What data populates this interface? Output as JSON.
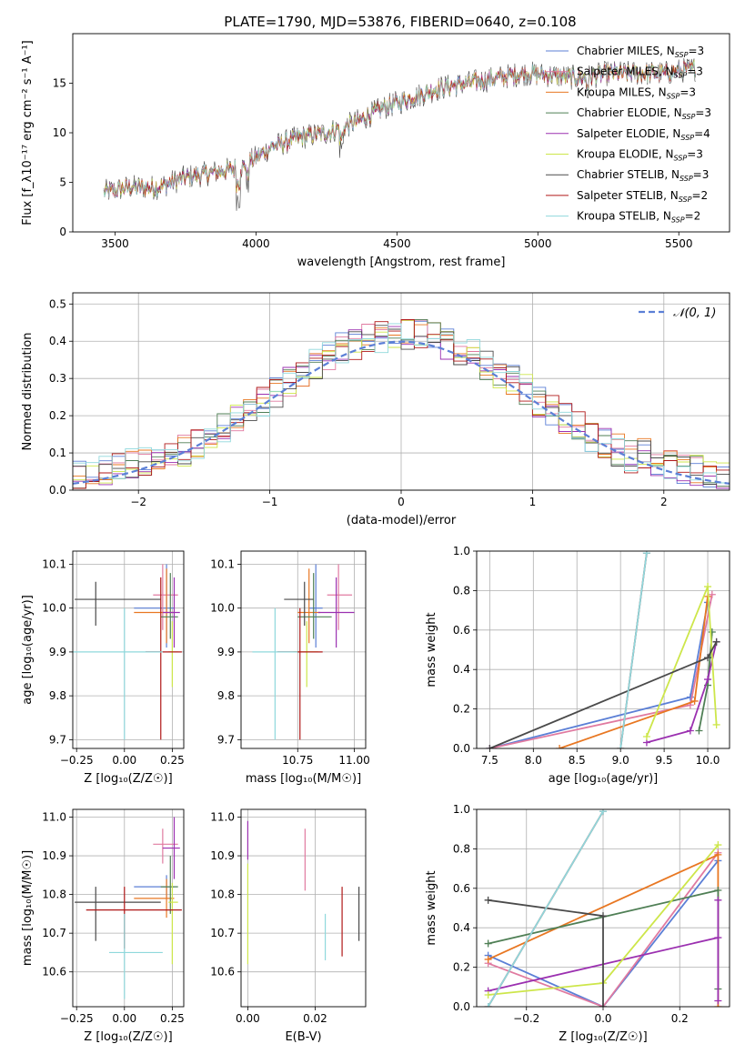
{
  "title": "PLATE=1790, MJD=53876, FIBERID=0640, z=0.108",
  "colors": {
    "chabrier_miles": "#5b7fd6",
    "salpeter_miles": "#e07aa0",
    "kroupa_miles": "#e87722",
    "chabrier_elodie": "#4f7f55",
    "salpeter_elodie": "#9b30b0",
    "kroupa_elodie": "#cde64a",
    "chabrier_stelib": "#4a4a4a",
    "salpeter_stelib": "#b01818",
    "kroupa_stelib": "#8fd8dc"
  },
  "chart_data": [
    {
      "id": "spectrum",
      "type": "line",
      "xlabel": "wavelength [Angstrom, rest frame]",
      "ylabel": "Flux [f_λ10⁻¹⁷ erg cm⁻² s⁻¹ A⁻¹]",
      "xlim": [
        3350,
        5680
      ],
      "ylim": [
        0,
        20
      ],
      "xticks": [
        3500,
        4000,
        4500,
        5000,
        5500
      ],
      "yticks": [
        0,
        5,
        10,
        15
      ],
      "grid": false,
      "legend_position": "top-right",
      "legend": [
        {
          "label": "Chabrier MILES, N_SSP=3",
          "text": "Chabrier MILES, N",
          "sub": "SSP",
          "tail": "=3",
          "color": "chabrier_miles"
        },
        {
          "label": "Salpeter MILES, N_SSP=3",
          "text": "Salpeter MILES, N",
          "sub": "SSP",
          "tail": "=3",
          "color": "salpeter_miles"
        },
        {
          "label": "Kroupa MILES, N_SSP=3",
          "text": "Kroupa MILES, N",
          "sub": "SSP",
          "tail": "=3",
          "color": "kroupa_miles"
        },
        {
          "label": "Chabrier ELODIE, N_SSP=3",
          "text": "Chabrier ELODIE, N",
          "sub": "SSP",
          "tail": "=3",
          "color": "chabrier_elodie"
        },
        {
          "label": "Salpeter ELODIE, N_SSP=4",
          "text": "Salpeter ELODIE, N",
          "sub": "SSP",
          "tail": "=4",
          "color": "salpeter_elodie"
        },
        {
          "label": "Kroupa ELODIE, N_SSP=3",
          "text": "Kroupa ELODIE, N",
          "sub": "SSP",
          "tail": "=3",
          "color": "kroupa_elodie"
        },
        {
          "label": "Chabrier STELIB, N_SSP=3",
          "text": "Chabrier STELIB, N",
          "sub": "SSP",
          "tail": "=3",
          "color": "chabrier_stelib"
        },
        {
          "label": "Salpeter STELIB, N_SSP=2",
          "text": "Salpeter STELIB, N",
          "sub": "SSP",
          "tail": "=2",
          "color": "salpeter_stelib"
        },
        {
          "label": "Kroupa STELIB, N_SSP=2",
          "text": "Kroupa STELIB, N",
          "sub": "SSP",
          "tail": "=2",
          "color": "kroupa_stelib"
        }
      ],
      "wavelength_range": [
        3460,
        5560
      ],
      "continuum": [
        [
          3460,
          4.0
        ],
        [
          3550,
          4.5
        ],
        [
          3650,
          4.5
        ],
        [
          3750,
          5.5
        ],
        [
          3850,
          6.0
        ],
        [
          3950,
          6.5
        ],
        [
          4050,
          8.5
        ],
        [
          4150,
          9.5
        ],
        [
          4250,
          10.0
        ],
        [
          4350,
          11.0
        ],
        [
          4450,
          12.5
        ],
        [
          4550,
          13.5
        ],
        [
          4650,
          14.5
        ],
        [
          4750,
          15.0
        ],
        [
          4850,
          15.5
        ],
        [
          4950,
          16.0
        ],
        [
          5050,
          15.8
        ],
        [
          5150,
          15.5
        ],
        [
          5250,
          16.0
        ],
        [
          5350,
          16.0
        ],
        [
          5450,
          16.0
        ],
        [
          5560,
          16.5
        ]
      ]
    },
    {
      "id": "residuals",
      "type": "line",
      "xlabel": "(data-model)/error",
      "ylabel": "Normed distribution",
      "xlim": [
        -2.5,
        2.5
      ],
      "ylim": [
        0,
        0.53
      ],
      "xticks": [
        -2,
        -1,
        0,
        1,
        2
      ],
      "yticks": [
        0.0,
        0.1,
        0.2,
        0.3,
        0.4,
        0.5
      ],
      "grid": true,
      "legend_position": "top-right",
      "legend": [
        {
          "label": "𝒩(0, 1)",
          "style": "dashed",
          "color": "chabrier_miles"
        }
      ],
      "bin_width": 0.1,
      "note": "step histograms of the normalised residuals for each of the nine models, with the standard normal density overlaid"
    },
    {
      "id": "age_vs_Z",
      "type": "scatter",
      "xlabel": "Z [log₁₀(Z/Z☉)]",
      "ylabel": "age  [log₁₀(age/yr)]",
      "xlim": [
        -0.27,
        0.31
      ],
      "ylim": [
        9.68,
        10.13
      ],
      "xticks": [
        -0.25,
        0.0,
        0.25
      ],
      "yticks": [
        9.7,
        9.8,
        9.9,
        10.0,
        10.1
      ],
      "grid": true,
      "points": [
        {
          "model": "chabrier_miles",
          "x": 0.22,
          "xerr": [
            0.17,
            0.04
          ],
          "y": 10.0,
          "yerr": [
            0.09,
            0.1
          ]
        },
        {
          "model": "salpeter_miles",
          "x": 0.2,
          "xerr": [
            0.05,
            0.08
          ],
          "y": 10.03,
          "yerr": [
            0.08,
            0.07
          ]
        },
        {
          "model": "kroupa_miles",
          "x": 0.22,
          "xerr": [
            0.17,
            0.04
          ],
          "y": 9.99,
          "yerr": [
            0.07,
            0.1
          ]
        },
        {
          "model": "chabrier_elodie",
          "x": 0.24,
          "xerr": [
            0.05,
            0.04
          ],
          "y": 9.98,
          "yerr": [
            0.05,
            0.1
          ]
        },
        {
          "model": "salpeter_elodie",
          "x": 0.26,
          "xerr": [
            0.06,
            0.03
          ],
          "y": 9.99,
          "yerr": [
            0.08,
            0.08
          ]
        },
        {
          "model": "kroupa_elodie",
          "x": 0.25,
          "xerr": [
            0.02,
            0.03
          ],
          "y": 9.9,
          "yerr": [
            0.08,
            0.07
          ]
        },
        {
          "model": "chabrier_stelib",
          "x": -0.15,
          "xerr": [
            0.11,
            0.34
          ],
          "y": 10.02,
          "yerr": [
            0.06,
            0.04
          ]
        },
        {
          "model": "salpeter_stelib",
          "x": 0.19,
          "xerr": [
            0.08,
            0.11
          ],
          "y": 9.9,
          "yerr": [
            0.2,
            0.17
          ]
        },
        {
          "model": "kroupa_stelib",
          "x": 0.0,
          "xerr": [
            0.3,
            0.2
          ],
          "y": 9.9,
          "yerr": [
            0.2,
            0.1
          ]
        }
      ]
    },
    {
      "id": "age_vs_mass",
      "type": "scatter",
      "xlabel": "mass [log₁₀(M/M☉)]",
      "ylabel": "",
      "xlim": [
        10.5,
        11.05
      ],
      "ylim": [
        9.68,
        10.13
      ],
      "xticks": [
        10.75,
        11.0
      ],
      "yticks": [
        9.7,
        9.8,
        9.9,
        10.0,
        10.1
      ],
      "grid": true,
      "points": [
        {
          "model": "chabrier_miles",
          "x": 10.83,
          "xerr": [
            0.03,
            0.03
          ],
          "y": 10.0,
          "yerr": [
            0.09,
            0.1
          ]
        },
        {
          "model": "salpeter_miles",
          "x": 10.93,
          "xerr": [
            0.05,
            0.06
          ],
          "y": 10.03,
          "yerr": [
            0.08,
            0.07
          ]
        },
        {
          "model": "kroupa_miles",
          "x": 10.8,
          "xerr": [
            0.05,
            0.05
          ],
          "y": 9.99,
          "yerr": [
            0.07,
            0.1
          ]
        },
        {
          "model": "chabrier_elodie",
          "x": 10.82,
          "xerr": [
            0.07,
            0.08
          ],
          "y": 9.98,
          "yerr": [
            0.05,
            0.1
          ]
        },
        {
          "model": "salpeter_elodie",
          "x": 10.92,
          "xerr": [
            0.08,
            0.08
          ],
          "y": 9.99,
          "yerr": [
            0.08,
            0.08
          ]
        },
        {
          "model": "kroupa_elodie",
          "x": 10.79,
          "xerr": [
            0.06,
            0.05
          ],
          "y": 9.9,
          "yerr": [
            0.08,
            0.07
          ]
        },
        {
          "model": "chabrier_stelib",
          "x": 10.78,
          "xerr": [
            0.09,
            0.04
          ],
          "y": 10.02,
          "yerr": [
            0.06,
            0.04
          ]
        },
        {
          "model": "salpeter_stelib",
          "x": 10.76,
          "xerr": [
            0.1,
            0.1
          ],
          "y": 9.9,
          "yerr": [
            0.2,
            0.1
          ]
        },
        {
          "model": "kroupa_stelib",
          "x": 10.65,
          "xerr": [
            0.1,
            0.1
          ],
          "y": 9.9,
          "yerr": [
            0.2,
            0.1
          ]
        }
      ]
    },
    {
      "id": "weight_vs_age",
      "type": "line",
      "xlabel": "age  [log₁₀(age/yr)]",
      "ylabel": "mass weight",
      "xlim": [
        7.35,
        10.25
      ],
      "ylim": [
        0,
        1.0
      ],
      "xticks": [
        7.5,
        8.0,
        8.5,
        9.0,
        9.5,
        10.0
      ],
      "yticks": [
        0.0,
        0.2,
        0.4,
        0.6,
        0.8,
        1.0
      ],
      "grid": true,
      "series": [
        {
          "model": "chabrier_miles",
          "x": [
            7.5,
            9.8,
            10.0
          ],
          "y": [
            0.0,
            0.26,
            0.74
          ]
        },
        {
          "model": "salpeter_miles",
          "x": [
            7.5,
            9.8,
            10.05
          ],
          "y": [
            0.0,
            0.22,
            0.78
          ]
        },
        {
          "model": "kroupa_miles",
          "x": [
            8.3,
            9.85,
            10.0
          ],
          "y": [
            0.0,
            0.24,
            0.77
          ]
        },
        {
          "model": "chabrier_elodie",
          "x": [
            9.9,
            10.0,
            10.05
          ],
          "y": [
            0.09,
            0.32,
            0.59
          ]
        },
        {
          "model": "salpeter_elodie",
          "x": [
            9.3,
            9.8,
            10.0,
            10.1
          ],
          "y": [
            0.03,
            0.09,
            0.35,
            0.54
          ]
        },
        {
          "model": "kroupa_elodie",
          "x": [
            9.3,
            10.0,
            10.1
          ],
          "y": [
            0.06,
            0.82,
            0.12
          ]
        },
        {
          "model": "chabrier_stelib",
          "x": [
            7.5,
            10.0,
            10.1
          ],
          "y": [
            0.0,
            0.46,
            0.54
          ]
        },
        {
          "model": "salpeter_stelib",
          "x": [
            9.0,
            9.3
          ],
          "y": [
            0.0,
            0.99
          ]
        },
        {
          "model": "kroupa_stelib",
          "x": [
            9.0,
            9.3
          ],
          "y": [
            0.0,
            0.99
          ]
        }
      ]
    },
    {
      "id": "mass_vs_Z",
      "type": "scatter",
      "xlabel": "Z [log₁₀(Z/Z☉)]",
      "ylabel": "mass [log₁₀(M/M☉)]",
      "xlim": [
        -0.27,
        0.31
      ],
      "ylim": [
        10.51,
        11.02
      ],
      "xticks": [
        -0.25,
        0.0,
        0.25
      ],
      "yticks": [
        10.6,
        10.7,
        10.8,
        10.9,
        11.0
      ],
      "grid": true,
      "points": [
        {
          "model": "chabrier_miles",
          "x": 0.22,
          "xerr": [
            0.17,
            0.04
          ],
          "y": 10.82,
          "yerr": [
            0.03,
            0.03
          ]
        },
        {
          "model": "salpeter_miles",
          "x": 0.2,
          "xerr": [
            0.05,
            0.08
          ],
          "y": 10.93,
          "yerr": [
            0.05,
            0.04
          ]
        },
        {
          "model": "kroupa_miles",
          "x": 0.22,
          "xerr": [
            0.17,
            0.04
          ],
          "y": 10.79,
          "yerr": [
            0.05,
            0.05
          ]
        },
        {
          "model": "chabrier_elodie",
          "x": 0.24,
          "xerr": [
            0.05,
            0.04
          ],
          "y": 10.82,
          "yerr": [
            0.07,
            0.08
          ]
        },
        {
          "model": "salpeter_elodie",
          "x": 0.26,
          "xerr": [
            0.06,
            0.03
          ],
          "y": 10.92,
          "yerr": [
            0.08,
            0.08
          ]
        },
        {
          "model": "kroupa_elodie",
          "x": 0.25,
          "xerr": [
            0.02,
            0.03
          ],
          "y": 10.78,
          "yerr": [
            0.16,
            0.05
          ]
        },
        {
          "model": "chabrier_stelib",
          "x": -0.15,
          "xerr": [
            0.11,
            0.34
          ],
          "y": 10.78,
          "yerr": [
            0.1,
            0.04
          ]
        },
        {
          "model": "salpeter_stelib",
          "x": 0.0,
          "xerr": [
            0.2,
            0.3
          ],
          "y": 10.76,
          "yerr": [
            0.1,
            0.06
          ]
        },
        {
          "model": "kroupa_stelib",
          "x": 0.0,
          "xerr": [
            0.08,
            0.2
          ],
          "y": 10.65,
          "yerr": [
            0.12,
            0.1
          ]
        }
      ]
    },
    {
      "id": "mass_vs_ebv",
      "type": "scatter",
      "xlabel": "E(B-V)",
      "ylabel": "",
      "xlim": [
        -0.002,
        0.035
      ],
      "ylim": [
        10.51,
        11.02
      ],
      "xticks": [
        0.0,
        0.02
      ],
      "yticks": [
        10.6,
        10.7,
        10.8,
        10.9,
        11.0
      ],
      "grid": true,
      "points": [
        {
          "model": "salpeter_elodie",
          "x": 0.0,
          "y": 10.94,
          "yerr": [
            0.05,
            0.05
          ]
        },
        {
          "model": "kroupa_elodie",
          "x": 0.0,
          "y": 10.75,
          "yerr": [
            0.13,
            0.13
          ]
        },
        {
          "model": "salpeter_miles",
          "x": 0.017,
          "y": 10.89,
          "yerr": [
            0.08,
            0.08
          ]
        },
        {
          "model": "kroupa_stelib",
          "x": 0.023,
          "y": 10.69,
          "yerr": [
            0.06,
            0.06
          ]
        },
        {
          "model": "salpeter_stelib",
          "x": 0.028,
          "y": 10.73,
          "yerr": [
            0.09,
            0.09
          ]
        },
        {
          "model": "chabrier_stelib",
          "x": 0.033,
          "y": 10.75,
          "yerr": [
            0.07,
            0.07
          ]
        }
      ]
    },
    {
      "id": "weight_vs_Z",
      "type": "line",
      "xlabel": "Z [log₁₀(Z/Z☉)]",
      "ylabel": "mass weight",
      "xlim": [
        -0.33,
        0.33
      ],
      "ylim": [
        0,
        1.0
      ],
      "xticks": [
        -0.2,
        0.0,
        0.2
      ],
      "yticks": [
        0.0,
        0.2,
        0.4,
        0.6,
        0.8,
        1.0
      ],
      "grid": true,
      "series": [
        {
          "model": "chabrier_miles",
          "x": [
            -0.3,
            0.0,
            0.3
          ],
          "y": [
            0.26,
            0.0,
            0.74
          ]
        },
        {
          "model": "salpeter_miles",
          "x": [
            -0.3,
            0.0,
            0.3
          ],
          "y": [
            0.22,
            0.0,
            0.78
          ]
        },
        {
          "model": "kroupa_miles",
          "x": [
            -0.3,
            0.3,
            0.3
          ],
          "y": [
            0.24,
            0.77,
            0.0
          ]
        },
        {
          "model": "chabrier_elodie",
          "x": [
            -0.3,
            0.3,
            0.3
          ],
          "y": [
            0.32,
            0.59,
            0.09
          ]
        },
        {
          "model": "salpeter_elodie",
          "x": [
            -0.3,
            0.3,
            0.3,
            0.3
          ],
          "y": [
            0.08,
            0.35,
            0.54,
            0.03
          ]
        },
        {
          "model": "kroupa_elodie",
          "x": [
            -0.3,
            0.0,
            0.3
          ],
          "y": [
            0.06,
            0.12,
            0.82
          ]
        },
        {
          "model": "chabrier_stelib",
          "x": [
            -0.3,
            0.0,
            0.0
          ],
          "y": [
            0.54,
            0.46,
            0.0
          ]
        },
        {
          "model": "salpeter_stelib",
          "x": [
            -0.3,
            0.0
          ],
          "y": [
            0.0,
            0.99
          ]
        },
        {
          "model": "kroupa_stelib",
          "x": [
            -0.3,
            0.0
          ],
          "y": [
            0.0,
            0.99
          ]
        }
      ]
    }
  ]
}
